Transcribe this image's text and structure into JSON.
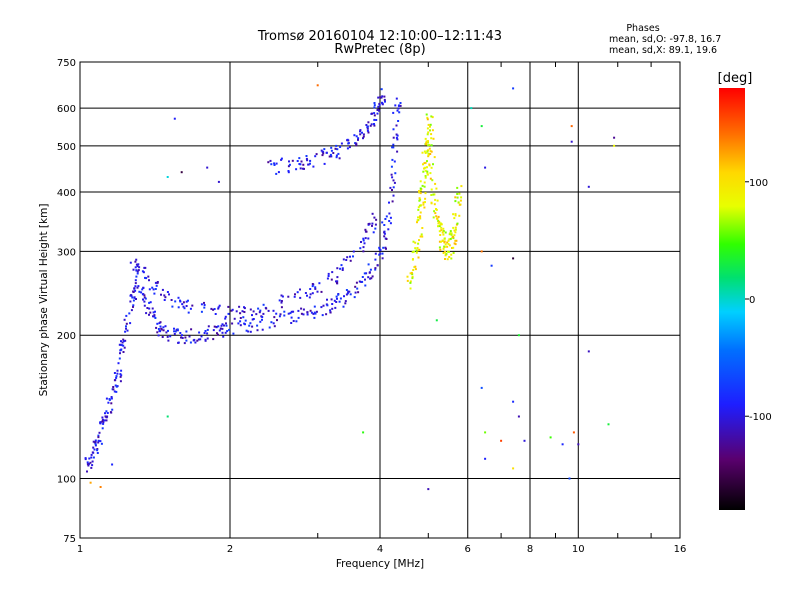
{
  "chart_data": {
    "type": "scatter",
    "title": "Tromsø 20160104 12:10:00–12:11:43",
    "subtitle": "RwPretec (8p)",
    "xlabel": "Frequency [MHz]",
    "ylabel": "Stationary phase Virtual Height [km]",
    "x_scale": "log2",
    "y_scale": "log",
    "xlim": [
      1,
      16
    ],
    "ylim": [
      75,
      750
    ],
    "x_ticks": [
      1,
      2,
      4,
      6,
      8,
      10,
      16
    ],
    "x_tick_labels": [
      "1",
      "2",
      "4",
      "6",
      "8",
      "10",
      "16"
    ],
    "y_ticks": [
      75,
      100,
      200,
      300,
      400,
      500,
      600,
      750
    ],
    "y_tick_labels": [
      "75",
      "100",
      "200",
      "300",
      "400",
      "500",
      "600",
      "750"
    ],
    "grid": true,
    "phase_stats": {
      "title": "Phases",
      "line_o": "mean, sd,O: -97.8, 16.7",
      "line_x": "mean, sd,X:  89.1, 19.6"
    },
    "colorbar": {
      "label": "[deg]",
      "range": [
        -180,
        180
      ],
      "ticks": [
        100,
        0,
        -100
      ],
      "tick_labels": [
        "100",
        "0",
        "-100"
      ]
    },
    "traces": [
      {
        "mode": "O",
        "phase_mean": -97.8,
        "phase_sd": 16.7,
        "points": [
          [
            1.02,
            105
          ],
          [
            1.05,
            110
          ],
          [
            1.08,
            118
          ],
          [
            1.1,
            125
          ],
          [
            1.12,
            135
          ],
          [
            1.15,
            145
          ],
          [
            1.18,
            155
          ],
          [
            1.2,
            168
          ],
          [
            1.22,
            190
          ],
          [
            1.25,
            215
          ],
          [
            1.28,
            240
          ],
          [
            1.3,
            262
          ],
          [
            1.35,
            235
          ],
          [
            1.4,
            218
          ],
          [
            1.45,
            207
          ],
          [
            1.5,
            201
          ],
          [
            1.6,
            199
          ],
          [
            1.7,
            200
          ],
          [
            1.8,
            202
          ],
          [
            1.9,
            204
          ],
          [
            2.0,
            206
          ],
          [
            2.2,
            210
          ],
          [
            2.4,
            214
          ],
          [
            2.6,
            218
          ],
          [
            2.8,
            222
          ],
          [
            3.0,
            226
          ],
          [
            3.2,
            232
          ],
          [
            3.4,
            240
          ],
          [
            3.6,
            252
          ],
          [
            3.8,
            268
          ],
          [
            4.0,
            292
          ],
          [
            4.1,
            320
          ],
          [
            4.2,
            370
          ],
          [
            4.25,
            450
          ],
          [
            4.3,
            560
          ],
          [
            4.35,
            620
          ]
        ]
      },
      {
        "mode": "O-F2",
        "phase_mean": -97.8,
        "phase_sd": 16.7,
        "points": [
          [
            2.4,
            450
          ],
          [
            2.6,
            455
          ],
          [
            2.8,
            462
          ],
          [
            3.0,
            470
          ],
          [
            3.2,
            480
          ],
          [
            3.4,
            495
          ],
          [
            3.6,
            515
          ],
          [
            3.8,
            545
          ],
          [
            3.9,
            575
          ],
          [
            4.0,
            610
          ],
          [
            4.05,
            640
          ]
        ]
      },
      {
        "mode": "O-upper",
        "phase_mean": -97.8,
        "phase_sd": 16.7,
        "points": [
          [
            1.28,
            290
          ],
          [
            1.32,
            275
          ],
          [
            1.4,
            255
          ],
          [
            1.5,
            240
          ],
          [
            1.6,
            232
          ],
          [
            1.8,
            225
          ],
          [
            2.0,
            224
          ],
          [
            2.2,
            226
          ],
          [
            2.5,
            234
          ],
          [
            2.8,
            244
          ],
          [
            3.0,
            252
          ],
          [
            3.3,
            268
          ],
          [
            3.6,
            295
          ],
          [
            3.8,
            330
          ],
          [
            4.0,
            360
          ]
        ]
      },
      {
        "mode": "X",
        "phase_mean": 89.1,
        "phase_sd": 19.6,
        "points": [
          [
            4.6,
            260
          ],
          [
            4.7,
            290
          ],
          [
            4.8,
            330
          ],
          [
            4.85,
            380
          ],
          [
            4.9,
            420
          ],
          [
            4.95,
            470
          ],
          [
            5.0,
            520
          ],
          [
            5.05,
            560
          ],
          [
            5.1,
            400
          ],
          [
            5.2,
            360
          ],
          [
            5.3,
            330
          ],
          [
            5.4,
            310
          ],
          [
            5.5,
            300
          ],
          [
            5.6,
            320
          ],
          [
            5.7,
            360
          ],
          [
            5.8,
            400
          ]
        ]
      }
    ],
    "scattered_points": [
      [
        1.55,
        570
      ],
      [
        1.5,
        430
      ],
      [
        1.6,
        440
      ],
      [
        1.8,
        450
      ],
      [
        1.9,
        420
      ],
      [
        3.0,
        670
      ],
      [
        3.9,
        615
      ],
      [
        6.1,
        600
      ],
      [
        6.4,
        550
      ],
      [
        7.4,
        660
      ],
      [
        9.7,
        550
      ],
      [
        9.7,
        510
      ],
      [
        10.5,
        410
      ],
      [
        11.8,
        520
      ],
      [
        11.8,
        500
      ],
      [
        6.5,
        450
      ],
      [
        6.4,
        300
      ],
      [
        7.4,
        290
      ],
      [
        6.7,
        280
      ],
      [
        5.2,
        215
      ],
      [
        7.6,
        200
      ],
      [
        10.5,
        185
      ],
      [
        6.4,
        155
      ],
      [
        7.4,
        145
      ],
      [
        7.6,
        135
      ],
      [
        6.5,
        125
      ],
      [
        7.0,
        120
      ],
      [
        7.8,
        120
      ],
      [
        8.8,
        122
      ],
      [
        9.3,
        118
      ],
      [
        10.0,
        118
      ],
      [
        9.8,
        125
      ],
      [
        11.5,
        130
      ],
      [
        6.5,
        110
      ],
      [
        7.4,
        105
      ],
      [
        9.6,
        100
      ],
      [
        5.0,
        95
      ],
      [
        3.7,
        125
      ],
      [
        1.5,
        135
      ],
      [
        1.16,
        107
      ],
      [
        1.05,
        98
      ],
      [
        1.1,
        96
      ]
    ]
  }
}
